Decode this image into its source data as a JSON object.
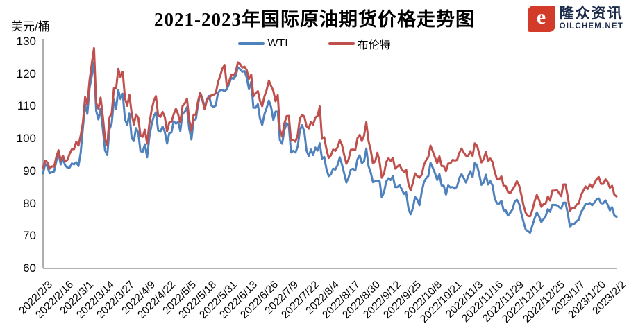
{
  "title": "2021-2023年国际原油期货价格走势图",
  "logo": {
    "icon_letter": "e",
    "name": "隆众资讯",
    "site": "OILCHEM.NET"
  },
  "colors": {
    "wti": "#4F81BD",
    "brent": "#C0504D",
    "axis": "#9a9a9a",
    "logo_red": "#d23a2a",
    "logo_navy": "#1b2b4a"
  },
  "chart_data": {
    "type": "line",
    "title": "2021-2023年国际原油期货价格走势图",
    "ylabel": "美元/桶",
    "xlabel": "",
    "ylim": [
      60,
      130
    ],
    "yticks": [
      60,
      70,
      80,
      90,
      100,
      110,
      120,
      130
    ],
    "grid": false,
    "legend_position": "top",
    "x_tick_labels": [
      "2022/2/3",
      "2022/2/16",
      "2022/3/1",
      "2022/3/14",
      "2022/3/27",
      "2022/4/9",
      "2022/4/22",
      "2022/5/5",
      "2022/5/18",
      "2022/5/31",
      "2022/6/13",
      "2022/6/26",
      "2022/7/9",
      "2022/7/22",
      "2022/8/4",
      "2022/8/17",
      "2022/8/30",
      "2022/9/12",
      "2022/9/25",
      "2022/10/8",
      "2022/10/21",
      "2022/11/3",
      "2022/11/16",
      "2022/11/29",
      "2022/12/12",
      "2022/12/25",
      "2023/1/7",
      "2023/1/20",
      "2023/2/2"
    ],
    "x_range_note": "daily closes from 2022/2/3 to 2023/2/2",
    "series": [
      {
        "name": "WTI",
        "color": "#4F81BD",
        "values": [
          89.3,
          92.3,
          91.3,
          89.4,
          89.7,
          89.9,
          93.1,
          95.5,
          92.1,
          93.7,
          91.8,
          91.1,
          91.1,
          92.4,
          92.1,
          92.8,
          91.6,
          95.7,
          103.4,
          110.6,
          107.7,
          115.7,
          119.4,
          123.7,
          108.7,
          106.0,
          109.3,
          103.0,
          96.4,
          95.0,
          103.0,
          104.7,
          112.1,
          109.3,
          115.0,
          112.3,
          113.9,
          106.0,
          104.2,
          107.8,
          100.3,
          99.3,
          103.3,
          102.0,
          96.2,
          96.0,
          98.3,
          94.3,
          100.6,
          104.3,
          107.0,
          108.2,
          102.6,
          102.2,
          103.8,
          102.1,
          98.5,
          101.7,
          102.0,
          105.4,
          104.7,
          105.2,
          102.4,
          107.8,
          108.3,
          109.8,
          103.1,
          99.8,
          105.7,
          106.1,
          110.5,
          114.2,
          112.4,
          109.6,
          112.2,
          113.2,
          110.3,
          109.8,
          110.3,
          114.1,
          115.1,
          115.1,
          114.7,
          115.3,
          116.9,
          118.9,
          118.5,
          119.4,
          122.1,
          121.5,
          120.7,
          120.9,
          118.9,
          115.3,
          117.6,
          109.6,
          109.6,
          110.7,
          106.2,
          104.3,
          107.6,
          109.6,
          111.8,
          109.8,
          105.8,
          108.4,
          108.4,
          99.5,
          98.5,
          102.7,
          104.8,
          104.1,
          95.8,
          96.3,
          95.8,
          97.6,
          102.6,
          104.2,
          102.3,
          96.4,
          94.7,
          96.7,
          95.0,
          97.3,
          96.4,
          98.6,
          93.9,
          94.4,
          90.7,
          88.5,
          89.0,
          90.8,
          90.5,
          91.9,
          94.3,
          92.1,
          89.4,
          86.5,
          88.1,
          90.5,
          90.8,
          90.2,
          93.7,
          94.9,
          92.5,
          93.1,
          97.0,
          91.6,
          89.6,
          86.6,
          86.9,
          86.9,
          86.9,
          81.9,
          83.5,
          86.8,
          87.8,
          87.3,
          88.5,
          85.1,
          85.1,
          85.7,
          84.5,
          83.0,
          83.5,
          78.7,
          76.7,
          78.5,
          82.1,
          81.2,
          79.5,
          83.6,
          86.5,
          87.8,
          88.5,
          92.6,
          91.1,
          89.4,
          87.3,
          89.1,
          85.6,
          85.5,
          82.8,
          85.6,
          85.0,
          85.1,
          84.6,
          85.3,
          87.9,
          89.1,
          87.9,
          86.5,
          88.4,
          90.0,
          88.2,
          92.6,
          91.8,
          89.0,
          85.8,
          86.5,
          88.9,
          85.9,
          86.9,
          85.6,
          81.6,
          80.1,
          80.0,
          80.9,
          77.9,
          77.9,
          76.3,
          77.2,
          78.2,
          80.6,
          81.2,
          80.0,
          77.0,
          74.3,
          72.0,
          71.5,
          71.0,
          73.2,
          75.4,
          77.3,
          76.1,
          74.3,
          75.2,
          76.1,
          78.3,
          77.5,
          79.6,
          79.6,
          79.5,
          79.0,
          78.4,
          80.3,
          80.3,
          77.0,
          72.8,
          73.7,
          73.8,
          74.6,
          75.1,
          77.4,
          78.4,
          79.9,
          79.9,
          80.2,
          79.5,
          80.3,
          81.3,
          81.6,
          80.1,
          80.1,
          81.0,
          79.7,
          77.9,
          78.9,
          76.4,
          75.9
        ]
      },
      {
        "name": "布伦特",
        "color": "#C0504D",
        "values": [
          91.1,
          93.3,
          92.7,
          90.8,
          91.5,
          91.4,
          94.4,
          96.5,
          93.3,
          94.8,
          93.0,
          93.5,
          95.4,
          96.8,
          96.8,
          99.1,
          97.9,
          101.0,
          105.0,
          112.9,
          110.5,
          118.1,
          123.2,
          128.0,
          111.1,
          109.3,
          112.7,
          106.9,
          99.9,
          98.0,
          106.6,
          107.9,
          115.6,
          115.5,
          121.6,
          119.0,
          120.7,
          112.5,
          110.2,
          113.5,
          107.9,
          104.4,
          107.5,
          106.6,
          101.1,
          100.6,
          102.8,
          98.5,
          104.6,
          108.8,
          111.7,
          113.2,
          107.3,
          106.8,
          108.3,
          106.7,
          102.3,
          105.0,
          105.3,
          107.6,
          109.3,
          107.6,
          105.0,
          110.1,
          110.9,
          112.4,
          105.9,
          102.5,
          107.5,
          107.4,
          111.6,
          114.2,
          111.9,
          109.1,
          112.0,
          112.6,
          113.4,
          113.6,
          114.0,
          117.4,
          119.4,
          121.7,
          122.8,
          116.3,
          117.6,
          119.7,
          119.5,
          120.6,
          123.6,
          123.1,
          122.0,
          122.3,
          121.2,
          118.5,
          119.8,
          113.1,
          114.1,
          114.7,
          111.7,
          110.1,
          113.1,
          115.1,
          118.0,
          116.3,
          114.8,
          111.6,
          113.5,
          102.8,
          100.7,
          104.7,
          107.0,
          107.1,
          99.5,
          99.6,
          99.1,
          101.2,
          106.3,
          107.4,
          106.9,
          103.9,
          103.2,
          105.2,
          104.4,
          106.6,
          107.1,
          110.0,
          100.0,
          100.5,
          96.8,
          94.1,
          94.9,
          96.7,
          96.3,
          97.4,
          99.6,
          98.2,
          95.1,
          92.3,
          93.7,
          96.6,
          96.7,
          96.5,
          100.2,
          101.2,
          99.3,
          101.0,
          105.1,
          99.3,
          96.5,
          92.4,
          93.0,
          95.7,
          92.8,
          88.0,
          89.2,
          92.8,
          94.0,
          93.2,
          94.1,
          90.8,
          91.4,
          92.0,
          90.6,
          89.8,
          90.5,
          86.2,
          84.1,
          86.3,
          89.3,
          88.5,
          88.0,
          88.9,
          91.8,
          93.4,
          94.4,
          97.9,
          96.2,
          94.3,
          92.5,
          94.6,
          91.6,
          91.6,
          90.0,
          92.4,
          92.4,
          93.5,
          93.3,
          93.5,
          95.7,
          97.0,
          95.8,
          94.8,
          94.7,
          96.2,
          94.7,
          98.6,
          97.9,
          95.4,
          92.7,
          93.7,
          96.0,
          93.1,
          93.9,
          92.9,
          89.8,
          87.6,
          87.5,
          88.4,
          85.4,
          85.4,
          83.6,
          83.2,
          84.3,
          85.4,
          86.9,
          85.6,
          82.7,
          79.4,
          77.2,
          76.2,
          76.1,
          78.0,
          80.7,
          82.7,
          81.2,
          79.0,
          79.8,
          80.0,
          82.2,
          81.0,
          84.0,
          84.0,
          84.3,
          83.3,
          82.3,
          85.9,
          85.9,
          82.1,
          77.8,
          78.7,
          78.6,
          79.7,
          80.1,
          82.7,
          84.0,
          85.3,
          84.5,
          85.9,
          85.0,
          86.2,
          87.6,
          88.2,
          86.1,
          86.1,
          87.5,
          86.7,
          84.9,
          85.5,
          82.8,
          82.2
        ]
      }
    ]
  }
}
